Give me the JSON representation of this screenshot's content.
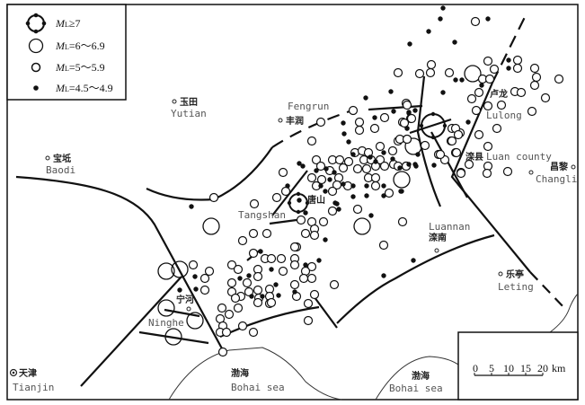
{
  "legend": {
    "items": [
      {
        "symbol": "circle-with-dots",
        "prefix": "M",
        "sub": "L",
        "range": "≥7"
      },
      {
        "symbol": "large-circle",
        "prefix": "M",
        "sub": "L",
        "range": "=6～6.9"
      },
      {
        "symbol": "small-circle",
        "prefix": "M",
        "sub": "L",
        "range": "=5～5.9"
      },
      {
        "symbol": "filled-dot",
        "prefix": "M",
        "sub": "L",
        "range": "=4.5～4.9"
      }
    ]
  },
  "places": {
    "yutian": {
      "cn": "玉田",
      "en": "Yutian"
    },
    "fengrun": {
      "cn": "丰润",
      "en": "Fengrun"
    },
    "lulong": {
      "cn": "卢龙",
      "en": "Lulong"
    },
    "luanxian": {
      "cn": "滦县",
      "en": "Luan county"
    },
    "changli": {
      "cn": "昌黎",
      "en": "Changli"
    },
    "baodi": {
      "cn": "宝坻",
      "en": "Baodi"
    },
    "tangshan": {
      "cn": "唐山",
      "en": "Tangshan"
    },
    "luannan": {
      "cn": "滦南",
      "en": "Luannan"
    },
    "leting": {
      "cn": "乐亭",
      "en": "Leting"
    },
    "ninghe": {
      "cn": "宁河",
      "en": "Ninghe"
    },
    "tianjin": {
      "cn": "天津",
      "en": "Tianjin"
    },
    "bohai1": {
      "cn": "渤海",
      "en": "Bohai sea"
    },
    "bohai2": {
      "cn": "渤海",
      "en": "Bohai sea"
    }
  },
  "scale_bar": {
    "ticks": [
      "0",
      "5",
      "10",
      "15",
      "20"
    ],
    "unit": "km"
  }
}
